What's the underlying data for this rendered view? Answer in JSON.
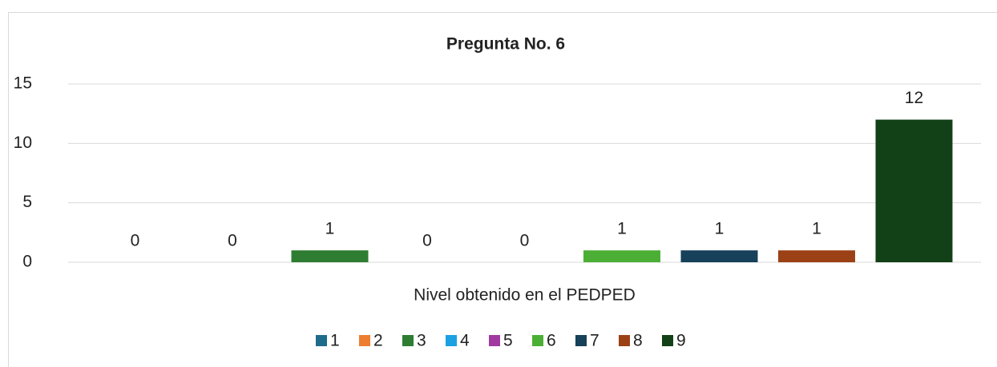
{
  "chart_data": {
    "type": "bar",
    "title": "Pregunta No. 6",
    "categories": [
      "Nivel obtenido en el PEDPED"
    ],
    "series": [
      {
        "name": "1",
        "color": "#1f6b8c",
        "values": [
          0
        ]
      },
      {
        "name": "2",
        "color": "#ed7d31",
        "values": [
          0
        ]
      },
      {
        "name": "3",
        "color": "#2e7d32",
        "values": [
          1
        ]
      },
      {
        "name": "4",
        "color": "#1ba1e2",
        "values": [
          0
        ]
      },
      {
        "name": "5",
        "color": "#a03aa0",
        "values": [
          0
        ]
      },
      {
        "name": "6",
        "color": "#4caf35",
        "values": [
          1
        ]
      },
      {
        "name": "7",
        "color": "#17405a",
        "values": [
          1
        ]
      },
      {
        "name": "8",
        "color": "#9c4115",
        "values": [
          1
        ]
      },
      {
        "name": "9",
        "color": "#124117",
        "values": [
          12
        ]
      }
    ],
    "ylim": [
      0,
      15
    ],
    "yticks": [
      0,
      5,
      10,
      15
    ],
    "grid": true,
    "legend": "bottom"
  }
}
